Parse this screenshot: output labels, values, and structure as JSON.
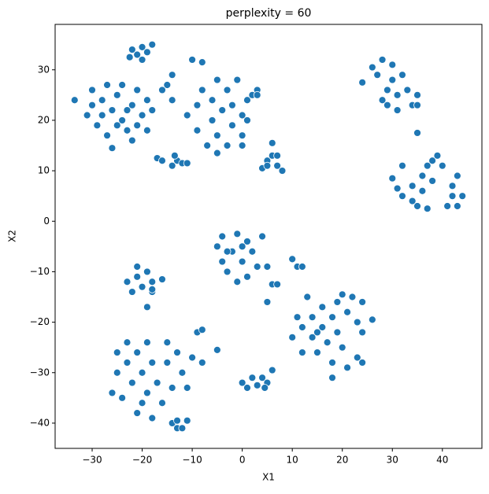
{
  "chart_data": {
    "type": "scatter",
    "title": "perplexity = 60",
    "xlabel": "X1",
    "ylabel": "X2",
    "color": "#1f77b4",
    "xlim": [
      -37.4,
      47.9
    ],
    "ylim": [
      -45.0,
      39.0
    ],
    "xticks": [
      {
        "value": -30,
        "label": "−30"
      },
      {
        "value": -20,
        "label": "−20"
      },
      {
        "value": -10,
        "label": "−10"
      },
      0,
      10,
      20,
      30,
      40
    ],
    "yticks": [
      {
        "value": -40,
        "label": "−40"
      },
      {
        "value": -30,
        "label": "−30"
      },
      {
        "value": -20,
        "label": "−20"
      },
      {
        "value": -10,
        "label": "−10"
      },
      0,
      10,
      20,
      30
    ],
    "x": [
      -33.5,
      -30,
      -31,
      -29,
      -28,
      -27,
      -27,
      -26,
      -25,
      -24,
      -24,
      -23,
      -22,
      -22,
      -21,
      -20,
      -19,
      -19,
      -18,
      -26,
      -28,
      -23,
      -25,
      -21,
      -30,
      -22,
      -21,
      -20,
      -19,
      -18,
      -22.5,
      -20,
      -10,
      -8,
      -11,
      -9,
      -9,
      -8,
      -7,
      -6,
      -6,
      -5,
      -5,
      -4,
      -3,
      -3,
      -2,
      -2,
      -1,
      0,
      0,
      1,
      1,
      0,
      -5,
      2,
      3,
      3,
      -14,
      -15,
      -14,
      -16,
      -17,
      -16,
      -14,
      -13,
      -12,
      -11,
      -13.5,
      4,
      5,
      6,
      6,
      7,
      7,
      8,
      5,
      24,
      26,
      27,
      28,
      29,
      30,
      29,
      31,
      31,
      32,
      33,
      34,
      35,
      35,
      30,
      28,
      35,
      30,
      31,
      32,
      32,
      34,
      34,
      35,
      36,
      36,
      37,
      38,
      39,
      40,
      37,
      41,
      42,
      43,
      42,
      43,
      44,
      38,
      -5,
      -4,
      -4,
      -3,
      -2,
      -1,
      -1,
      0,
      1,
      1,
      2,
      3,
      4,
      -3,
      0,
      5,
      6,
      7,
      10,
      11,
      12,
      -23,
      -22,
      -21,
      -21,
      -20,
      -19,
      -18,
      -18,
      -16,
      -19,
      -18,
      5,
      10,
      11,
      12,
      12,
      13,
      14,
      14,
      15,
      16,
      16,
      17,
      18,
      18,
      19,
      19,
      20,
      21,
      21,
      22,
      23,
      23,
      24,
      24,
      24,
      26,
      18,
      20,
      15,
      -26,
      -25,
      -25,
      -24,
      -23,
      -23,
      -22,
      -21,
      -21,
      -20,
      -19,
      -19,
      -18,
      -17,
      -16,
      -15,
      -15,
      -14,
      -13,
      -12,
      -11,
      -10,
      -8,
      -9,
      -8,
      -18,
      -5,
      -20,
      -14,
      -13,
      -12,
      -11,
      -13,
      0,
      1,
      2,
      3,
      4,
      5,
      6,
      4.5
    ],
    "y": [
      24,
      26,
      21,
      19,
      24,
      27,
      17,
      22,
      25,
      20,
      27,
      18,
      23,
      16,
      26,
      21,
      18,
      24,
      22,
      14.5,
      21,
      22,
      19,
      19,
      23,
      34,
      33,
      34.5,
      33.5,
      35,
      32.5,
      32,
      32,
      31.5,
      21,
      23,
      18,
      26,
      15,
      20,
      24,
      28,
      17,
      22,
      26,
      15,
      19,
      23,
      28,
      21,
      17,
      24,
      20,
      15,
      13.5,
      25,
      26,
      25,
      29,
      27,
      24,
      26,
      12.5,
      12,
      11,
      12,
      11.5,
      11.5,
      13,
      10.5,
      12,
      13,
      15.5,
      11,
      13,
      10,
      11,
      27.5,
      30.5,
      29,
      32,
      26,
      31,
      23,
      25,
      22,
      29,
      26,
      23,
      25,
      23,
      28,
      24,
      17.5,
      8.5,
      6.5,
      5,
      11,
      4,
      7,
      3,
      6,
      9,
      11,
      12,
      13,
      11,
      2.5,
      3,
      5,
      9,
      7,
      3,
      5,
      8,
      -5,
      -8,
      -3,
      -10,
      -6,
      -12,
      -2.5,
      -8,
      -4,
      -11,
      -6,
      -9,
      -3,
      -6,
      -5,
      -9,
      -12.5,
      -12.5,
      -7.5,
      -9,
      -9,
      -12,
      -14,
      -9,
      -11,
      -13,
      -10,
      -12,
      -14,
      -11.5,
      -17,
      -13.5,
      -16,
      -23,
      -19,
      -26,
      -21,
      -15,
      -23,
      -19,
      -26,
      -21,
      -17,
      -24,
      -19,
      -28,
      -22,
      -16,
      -25,
      -18,
      -29,
      -15,
      -20,
      -27,
      -16,
      -22,
      -28,
      -19.5,
      -31,
      -14.5,
      -22,
      -34,
      -26,
      -30,
      -35,
      -24,
      -28,
      -32,
      -38,
      -26,
      -30,
      -34,
      -24,
      -28,
      -32,
      -36,
      -24,
      -28,
      -33,
      -26,
      -30,
      -33,
      -27,
      -28,
      -22,
      -21.5,
      -39,
      -25.5,
      -36,
      -40,
      -41,
      -41,
      -39.5,
      -39.5,
      -32,
      -33,
      -31,
      -32.5,
      -31,
      -32,
      -29.5,
      -33
    ]
  }
}
